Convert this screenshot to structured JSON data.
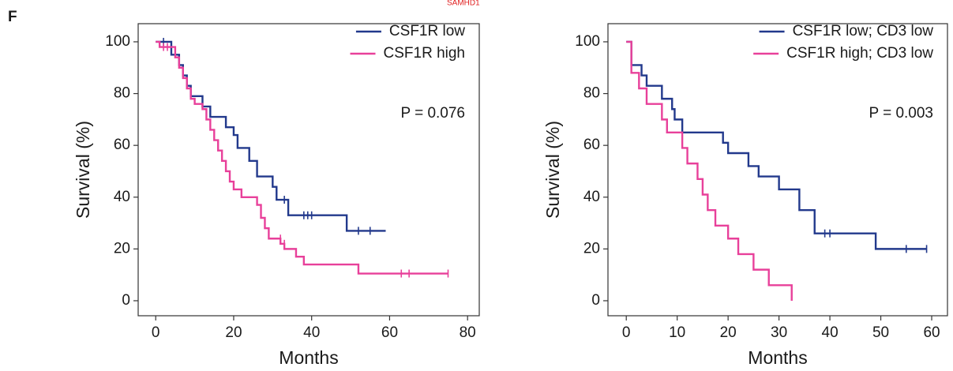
{
  "panel_label": "F",
  "cropped_text": "SAMHD1",
  "chart_data": [
    {
      "type": "line",
      "step": true,
      "xlabel": "Months",
      "ylabel": "Survival (%)",
      "annotation": "P = 0.076",
      "legend": "upper right",
      "grid": false,
      "xlim": [
        -4.5,
        83
      ],
      "ylim": [
        -5.8,
        107
      ],
      "xticks": [
        0,
        20,
        40,
        60,
        80
      ],
      "yticks": [
        0,
        20,
        40,
        60,
        80,
        100
      ],
      "series": [
        {
          "name": "CSF1R low",
          "color": "#22398c",
          "x": [
            0,
            4,
            6,
            7,
            8,
            9,
            12,
            14,
            18,
            20,
            21,
            24,
            26,
            30,
            31,
            34,
            49,
            59
          ],
          "values": [
            100,
            95,
            91,
            87,
            83,
            79,
            75,
            71,
            67,
            64,
            59,
            54,
            48,
            44,
            39,
            33,
            27,
            27
          ],
          "censor_x": [
            2,
            33,
            38,
            39,
            40,
            52,
            55
          ],
          "censor_values": [
            100,
            39,
            33,
            33,
            33,
            27,
            27
          ]
        },
        {
          "name": "CSF1R high",
          "color": "#e8409a",
          "x": [
            0,
            1,
            5,
            6,
            7,
            8,
            9,
            10,
            12,
            13,
            14,
            15,
            16,
            17,
            18,
            19,
            20,
            22,
            26,
            27,
            28,
            29,
            32,
            33,
            36,
            38,
            52,
            75
          ],
          "values": [
            100,
            98,
            94,
            90,
            86,
            82,
            78,
            76,
            74,
            70,
            66,
            62,
            58,
            54,
            50,
            46,
            43,
            40,
            37,
            32,
            28,
            24,
            22,
            20,
            17,
            14,
            10.5,
            10.5
          ],
          "censor_x": [
            2,
            3,
            32,
            33,
            63,
            65,
            75
          ],
          "censor_values": [
            98,
            98,
            24,
            22,
            10.5,
            10.5,
            10.5
          ]
        }
      ]
    },
    {
      "type": "line",
      "step": true,
      "xlabel": "Months",
      "ylabel": "Survival (%)",
      "annotation": "P = 0.003",
      "legend": "upper right",
      "grid": false,
      "xlim": [
        -3.6,
        63.1
      ],
      "ylim": [
        -5.8,
        107
      ],
      "xticks": [
        0,
        10,
        20,
        30,
        40,
        50,
        60
      ],
      "yticks": [
        0,
        20,
        40,
        60,
        80,
        100
      ],
      "series": [
        {
          "name": "CSF1R low; CD3 low",
          "color": "#22398c",
          "x": [
            0,
            1,
            3,
            4,
            7,
            9,
            9.5,
            11,
            19,
            20,
            24,
            26,
            30,
            34,
            37,
            49,
            59
          ],
          "values": [
            100,
            91,
            87,
            83,
            78,
            74,
            70,
            65,
            61,
            57,
            52,
            48,
            43,
            35,
            26,
            20,
            20
          ],
          "censor_x": [
            39,
            40,
            55,
            59
          ],
          "censor_values": [
            26,
            26,
            20,
            20
          ]
        },
        {
          "name": "CSF1R high; CD3 low",
          "color": "#e8409a",
          "x": [
            0,
            1,
            2.5,
            4,
            7,
            8,
            11,
            12,
            14,
            15,
            16,
            17.5,
            20,
            22,
            25,
            28,
            32.5
          ],
          "values": [
            100,
            88,
            82,
            76,
            70,
            65,
            59,
            53,
            47,
            41,
            35,
            29,
            24,
            18,
            12,
            6,
            0
          ],
          "censor_x": [],
          "censor_values": []
        }
      ]
    }
  ]
}
